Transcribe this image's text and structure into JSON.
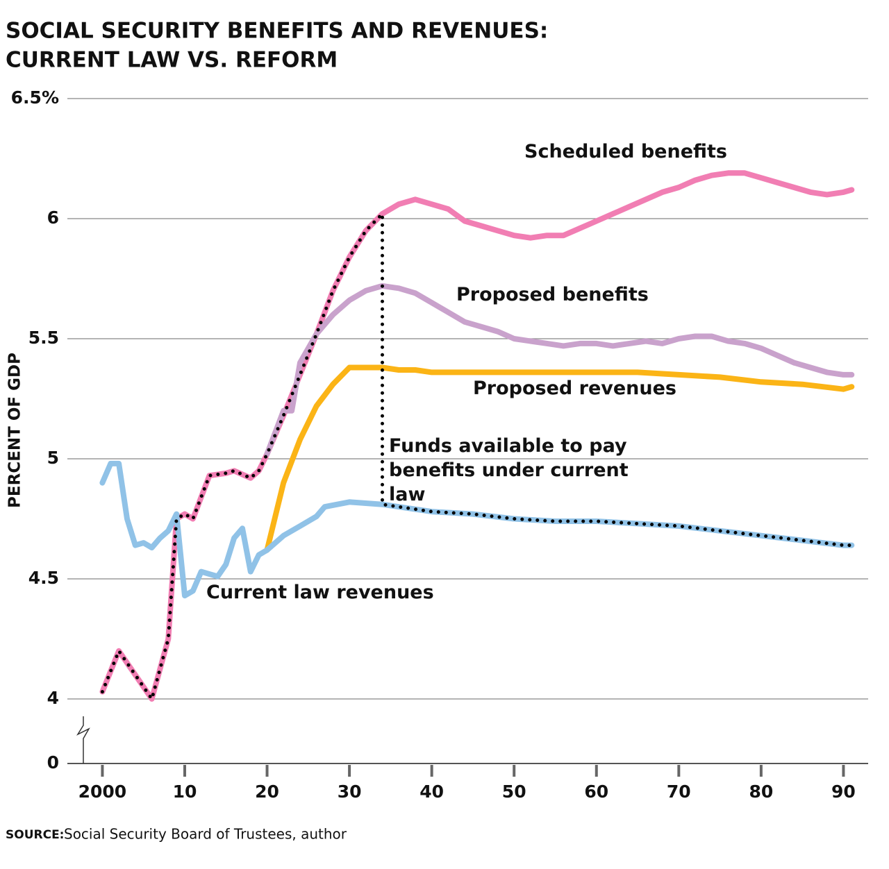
{
  "chart_data": {
    "type": "line",
    "title": "SOCIAL SECURITY BENEFITS AND REVENUES:",
    "subtitle": "CURRENT LAW VS. REFORM",
    "y_label": "PERCENT OF GDP",
    "source_label": "SOURCE:",
    "source": "Social Security Board of Trustees, author",
    "xlim": [
      1996,
      2093
    ],
    "xticks": [
      2000,
      {
        "value": 2010,
        "label": "10"
      },
      {
        "value": 2020,
        "label": "20"
      },
      {
        "value": 2030,
        "label": "30"
      },
      {
        "value": 2040,
        "label": "40"
      },
      {
        "value": 2050,
        "label": "50"
      },
      {
        "value": 2060,
        "label": "60"
      },
      {
        "value": 2070,
        "label": "70"
      },
      {
        "value": 2080,
        "label": "80"
      },
      {
        "value": 2090,
        "label": "90"
      }
    ],
    "ylim": [
      0,
      6.5
    ],
    "yticks": [
      0,
      4,
      4.5,
      5,
      5.5,
      6,
      {
        "value": 6.5,
        "label": "6.5%"
      }
    ],
    "axis_break": true,
    "grid": true,
    "series": [
      {
        "name": "Scheduled benefits",
        "color": "#f17eb3",
        "x": [
          2000,
          2002,
          2004,
          2006,
          2008,
          2009,
          2010,
          2011,
          2013,
          2015,
          2016,
          2018,
          2019,
          2020,
          2022,
          2024,
          2026,
          2028,
          2030,
          2032,
          2034,
          2036,
          2038,
          2040,
          2042,
          2044,
          2046,
          2048,
          2050,
          2052,
          2054,
          2056,
          2058,
          2060,
          2062,
          2064,
          2066,
          2068,
          2070,
          2072,
          2074,
          2076,
          2078,
          2080,
          2082,
          2084,
          2086,
          2088,
          2090,
          2091
        ],
        "values": [
          4.03,
          4.2,
          4.1,
          4.0,
          4.25,
          4.75,
          4.77,
          4.75,
          4.93,
          4.94,
          4.95,
          4.92,
          4.95,
          5.02,
          5.18,
          5.35,
          5.52,
          5.7,
          5.84,
          5.95,
          6.02,
          6.06,
          6.08,
          6.06,
          6.04,
          5.99,
          5.97,
          5.95,
          5.93,
          5.92,
          5.93,
          5.93,
          5.96,
          5.99,
          6.02,
          6.05,
          6.08,
          6.11,
          6.13,
          6.16,
          6.18,
          6.19,
          6.19,
          6.17,
          6.15,
          6.13,
          6.11,
          6.1,
          6.11,
          6.12
        ]
      },
      {
        "name": "Proposed benefits",
        "color": "#c9a2cc",
        "x": [
          2020,
          2022,
          2023,
          2024,
          2026,
          2028,
          2030,
          2032,
          2034,
          2036,
          2038,
          2040,
          2042,
          2044,
          2046,
          2048,
          2050,
          2052,
          2054,
          2056,
          2058,
          2060,
          2062,
          2064,
          2066,
          2068,
          2070,
          2072,
          2074,
          2076,
          2078,
          2080,
          2082,
          2084,
          2086,
          2088,
          2090,
          2091
        ],
        "values": [
          5.02,
          5.2,
          5.2,
          5.4,
          5.52,
          5.6,
          5.66,
          5.7,
          5.72,
          5.71,
          5.69,
          5.65,
          5.61,
          5.57,
          5.55,
          5.53,
          5.5,
          5.49,
          5.48,
          5.47,
          5.48,
          5.48,
          5.47,
          5.48,
          5.49,
          5.48,
          5.5,
          5.51,
          5.51,
          5.49,
          5.48,
          5.46,
          5.43,
          5.4,
          5.38,
          5.36,
          5.35,
          5.35
        ]
      },
      {
        "name": "Proposed revenues",
        "color": "#fbb416",
        "x": [
          2020,
          2022,
          2024,
          2026,
          2028,
          2030,
          2032,
          2034,
          2036,
          2038,
          2040,
          2045,
          2050,
          2055,
          2060,
          2065,
          2070,
          2075,
          2080,
          2085,
          2090,
          2091
        ],
        "values": [
          4.62,
          4.9,
          5.08,
          5.22,
          5.31,
          5.38,
          5.38,
          5.38,
          5.37,
          5.37,
          5.36,
          5.36,
          5.36,
          5.36,
          5.36,
          5.36,
          5.35,
          5.34,
          5.32,
          5.31,
          5.29,
          5.3
        ]
      },
      {
        "name": "Current law revenues",
        "color": "#90c2e7",
        "x": [
          2000,
          2001,
          2002,
          2003,
          2004,
          2005,
          2006,
          2007,
          2008,
          2009,
          2010,
          2011,
          2012,
          2013,
          2014,
          2015,
          2016,
          2017,
          2018,
          2019,
          2020,
          2022,
          2024,
          2026,
          2027,
          2030,
          2034,
          2036,
          2040,
          2045,
          2050,
          2055,
          2060,
          2065,
          2070,
          2075,
          2080,
          2085,
          2090,
          2091
        ],
        "values": [
          4.9,
          4.98,
          4.98,
          4.75,
          4.64,
          4.65,
          4.63,
          4.67,
          4.7,
          4.77,
          4.43,
          4.45,
          4.53,
          4.52,
          4.51,
          4.56,
          4.67,
          4.71,
          4.53,
          4.6,
          4.62,
          4.68,
          4.72,
          4.76,
          4.8,
          4.82,
          4.81,
          4.8,
          4.78,
          4.77,
          4.75,
          4.74,
          4.74,
          4.73,
          4.72,
          4.7,
          4.68,
          4.66,
          4.64,
          4.64
        ]
      },
      {
        "name": "Funds available to pay benefits under current law",
        "color": "#000000",
        "dotted": true,
        "x": [
          2000,
          2002,
          2004,
          2006,
          2008,
          2009,
          2010,
          2011,
          2013,
          2015,
          2016,
          2018,
          2019,
          2020,
          2022,
          2024,
          2026,
          2028,
          2030,
          2032,
          2034,
          2034,
          2036,
          2040,
          2045,
          2050,
          2055,
          2060,
          2065,
          2070,
          2075,
          2080,
          2085,
          2090,
          2091
        ],
        "values": [
          4.03,
          4.2,
          4.1,
          4.0,
          4.25,
          4.75,
          4.77,
          4.75,
          4.93,
          4.94,
          4.95,
          4.92,
          4.95,
          5.02,
          5.18,
          5.35,
          5.52,
          5.7,
          5.84,
          5.95,
          6.02,
          4.81,
          4.8,
          4.78,
          4.77,
          4.75,
          4.74,
          4.74,
          4.73,
          4.72,
          4.7,
          4.68,
          4.66,
          4.64,
          4.64
        ]
      }
    ]
  }
}
